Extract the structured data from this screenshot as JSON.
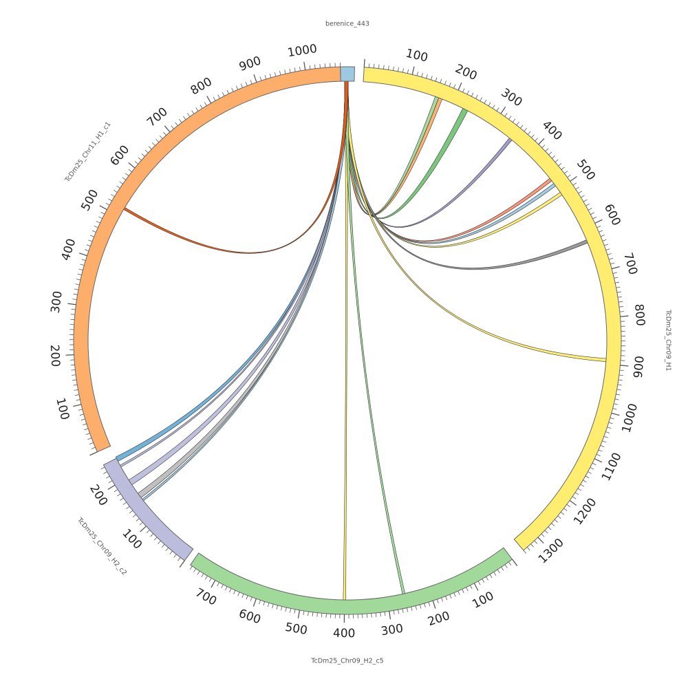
{
  "chart_data": {
    "type": "chord",
    "segments": [
      {
        "id": "berenice_443",
        "label": "berenice_443",
        "color": "#9ecae1",
        "length": 10,
        "ticks": []
      },
      {
        "id": "H1",
        "label": "TcDm25_Chr09_H1",
        "color": "#ffed6f",
        "length": 1340,
        "ticks": [
          100,
          200,
          300,
          400,
          500,
          600,
          700,
          800,
          900,
          1000,
          1100,
          1200,
          1300
        ]
      },
      {
        "id": "c5",
        "label": "TcDm25_Chr09_H2_c5",
        "color": "#a1d99b",
        "length": 765,
        "ticks": [
          100,
          200,
          300,
          400,
          500,
          600,
          700
        ]
      },
      {
        "id": "c2",
        "label": "TcDm25_Chr09_H2_c2",
        "color": "#bcbddc",
        "length": 245,
        "ticks": [
          100,
          200
        ]
      },
      {
        "id": "c1",
        "label": "TcDm25_Chr11_H1_c1",
        "color": "#fdae6b",
        "length": 1070,
        "ticks": [
          100,
          200,
          300,
          400,
          500,
          600,
          700,
          800,
          900,
          1000
        ]
      }
    ],
    "links": [
      {
        "target": "H1",
        "from": 160,
        "to": 168,
        "color": "#a1d99b"
      },
      {
        "target": "H1",
        "from": 168,
        "to": 176,
        "color": "#fdae6b"
      },
      {
        "target": "H1",
        "from": 225,
        "to": 237,
        "color": "#74c476"
      },
      {
        "target": "H1",
        "from": 345,
        "to": 352,
        "color": "#9e9ac8"
      },
      {
        "target": "H1",
        "from": 469,
        "to": 476,
        "color": "#fc9272"
      },
      {
        "target": "H1",
        "from": 483,
        "to": 490,
        "color": "#9ecae1"
      },
      {
        "target": "H1",
        "from": 507,
        "to": 514,
        "color": "#ffed6f"
      },
      {
        "target": "H1",
        "from": 625,
        "to": 632,
        "color": "#969696"
      },
      {
        "target": "H1",
        "from": 888,
        "to": 895,
        "color": "#ffed6f"
      },
      {
        "target": "c5",
        "from": 397,
        "to": 403,
        "color": "#ffed6f"
      },
      {
        "target": "c5",
        "from": 257,
        "to": 263,
        "color": "#a1d99b"
      },
      {
        "target": "c2",
        "from": 238,
        "to": 248,
        "color": "#6baed6"
      },
      {
        "target": "c2",
        "from": 225,
        "to": 229,
        "color": "#bcbddc"
      },
      {
        "target": "c2",
        "from": 182,
        "to": 194,
        "color": "#bcbddc"
      },
      {
        "target": "c2",
        "from": 150,
        "to": 161,
        "color": "#bdbdbd"
      },
      {
        "target": "c2",
        "from": 142,
        "to": 146,
        "color": "#9ecae1"
      },
      {
        "target": "c1",
        "from": 517,
        "to": 522,
        "color": "#e6550d"
      }
    ]
  }
}
